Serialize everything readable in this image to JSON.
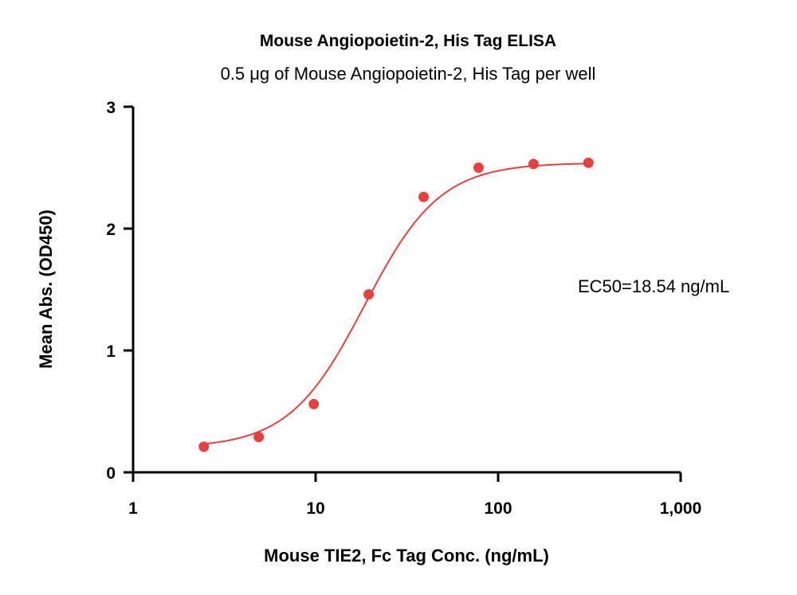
{
  "chart_data": {
    "type": "scatter",
    "title": "Mouse Angiopoietin-2, His Tag ELISA",
    "subtitle": "0.5 μg of Mouse Angiopoietin-2, His Tag per well",
    "xlabel": "Mouse TIE2, Fc Tag Conc. (ng/mL)",
    "ylabel": "Mean Abs. (OD450)",
    "xscale": "log",
    "xlim": [
      1,
      1000
    ],
    "ylim": [
      0,
      3
    ],
    "xticks": [
      1,
      10,
      100,
      1000
    ],
    "xtick_labels": [
      "1",
      "10",
      "100",
      "1,000"
    ],
    "yticks": [
      0,
      1,
      2,
      3
    ],
    "ytick_labels": [
      "0",
      "1",
      "2",
      "3"
    ],
    "series": [
      {
        "x": [
          2.44,
          4.88,
          9.77,
          19.53,
          39.06,
          78.13,
          156.25,
          312.5
        ],
        "y": [
          0.21,
          0.29,
          0.56,
          1.46,
          2.26,
          2.5,
          2.53,
          2.54
        ],
        "color": "#e8403c",
        "fit": "4PL sigmoid"
      }
    ],
    "fit_params": {
      "bottom": 0.2,
      "top": 2.54,
      "ec50": 18.54,
      "hill": 2.1
    },
    "annotation": "EC50=18.54 ng/mL",
    "grid": false,
    "legend": "none"
  }
}
